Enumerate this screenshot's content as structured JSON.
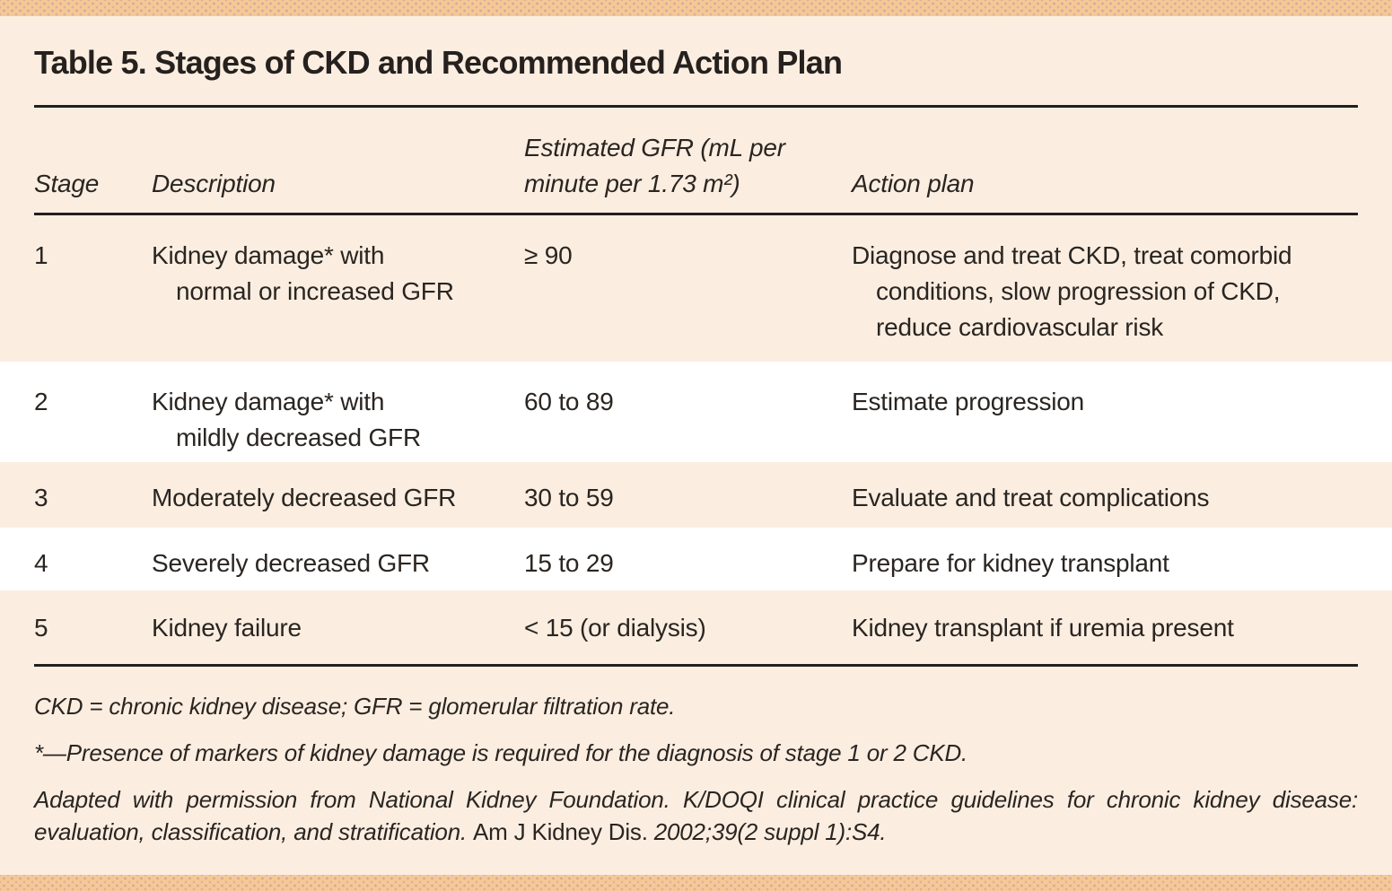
{
  "title": "Table 5. Stages of CKD and Recommended Action Plan",
  "colors": {
    "accent_bar": "#f7c796",
    "page_background": "#fbeee1",
    "row_highlight": "#ffffff",
    "text": "#2a2521",
    "rule": "#231f20"
  },
  "chart_data": {
    "type": "table",
    "title": "Table 5. Stages of CKD and Recommended Action Plan",
    "columns": [
      "Stage",
      "Description",
      "Estimated GFR (mL per minute per 1.73 m²)",
      "Action plan"
    ],
    "rows": [
      [
        "1",
        "Kidney damage* with normal or increased GFR",
        "≥ 90",
        "Diagnose and treat CKD, treat comorbid conditions, slow progression of CKD, reduce cardiovascular risk"
      ],
      [
        "2",
        "Kidney damage* with mildly decreased GFR",
        "60 to 89",
        "Estimate progression"
      ],
      [
        "3",
        "Moderately decreased GFR",
        "30 to 59",
        "Evaluate and treat complications"
      ],
      [
        "4",
        "Severely decreased GFR",
        "15 to 29",
        "Prepare for kidney transplant"
      ],
      [
        "5",
        "Kidney failure",
        "< 15 (or dialysis)",
        "Kidney transplant if uremia present"
      ]
    ]
  },
  "table": {
    "header": {
      "stage": "Stage",
      "description": "Description",
      "gfr_line1": "Estimated GFR (mL per",
      "gfr_line2": "minute per 1.73 m²)",
      "action": "Action plan"
    },
    "rows": [
      {
        "stage": "1",
        "description": [
          "Kidney damage* with",
          "normal or increased GFR"
        ],
        "gfr": "≥ 90",
        "action": [
          "Diagnose and treat CKD, treat comorbid",
          "conditions, slow progression of CKD,",
          "reduce cardiovascular risk"
        ]
      },
      {
        "stage": "2",
        "description": [
          "Kidney damage* with",
          "mildly decreased GFR"
        ],
        "gfr": "60 to 89",
        "action": [
          "Estimate progression"
        ]
      },
      {
        "stage": "3",
        "description": [
          "Moderately decreased GFR"
        ],
        "gfr": "30 to 59",
        "action": [
          "Evaluate and treat complications"
        ]
      },
      {
        "stage": "4",
        "description": [
          "Severely decreased GFR"
        ],
        "gfr": "15 to 29",
        "action": [
          "Prepare for kidney transplant"
        ]
      },
      {
        "stage": "5",
        "description": [
          "Kidney failure"
        ],
        "gfr": "< 15 (or dialysis)",
        "action": [
          "Kidney transplant if uremia present"
        ]
      }
    ]
  },
  "footnotes": {
    "abbreviations": "CKD = chronic kidney disease; GFR = glomerular filtration rate.",
    "asterisk": "*—Presence of markers of kidney damage is required for the diagnosis of stage 1 or 2 CKD.",
    "source_prefix": "Adapted with permission from National Kidney Foundation. K/DOQI clinical practice guidelines for chronic kidney disease: evaluation, classification, and stratification. ",
    "source_journal": "Am J Kidney Dis.",
    "source_suffix": " 2002;39(2 suppl 1):S4."
  }
}
